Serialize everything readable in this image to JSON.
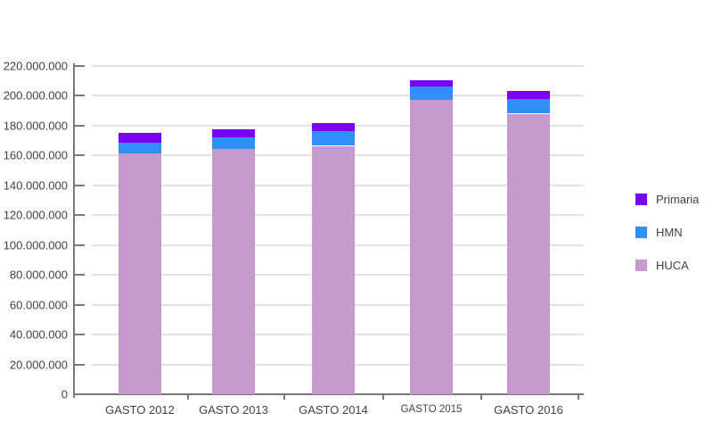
{
  "chart_data": {
    "type": "bar",
    "stacked": true,
    "orientation": "vertical",
    "categories": [
      "GASTO 2012",
      "GASTO 2013",
      "GASTO 2014",
      "GASTO 2015",
      "GASTO 2016"
    ],
    "series": [
      {
        "name": "HUCA",
        "color": "#c79acd",
        "values": [
          161500000,
          164500000,
          166500000,
          197500000,
          188000000
        ]
      },
      {
        "name": "HMN",
        "color": "#2e90f8",
        "values": [
          7000000,
          7500000,
          10000000,
          8500000,
          10000000
        ]
      },
      {
        "name": "Primaria",
        "color": "#7a00f5",
        "values": [
          6500000,
          5500000,
          5000000,
          4500000,
          5000000
        ]
      }
    ],
    "stack_totals": [
      175000000,
      177500000,
      181500000,
      210500000,
      203000000
    ],
    "ylim": [
      0,
      220000000
    ],
    "ytick_step": 20000000,
    "ytick_labels": [
      "0",
      "20.000.000",
      "40.000.000",
      "60.000.000",
      "80.000.000",
      "100.000.000",
      "120.000.000",
      "140.000.000",
      "160.000.000",
      "180.000.000",
      "200.000.000",
      "220.000.000"
    ],
    "grid": true,
    "legend_position": "right"
  },
  "legend": {
    "items": [
      {
        "label": "Primaria",
        "color": "#7a00f5"
      },
      {
        "label": "HMN",
        "color": "#2e90f8"
      },
      {
        "label": "HUCA",
        "color": "#c79acd"
      }
    ]
  },
  "colors": {
    "axis": "#787878",
    "gridline": "#e2e2e2",
    "label_text": "#424242",
    "background": "#ffffff"
  }
}
